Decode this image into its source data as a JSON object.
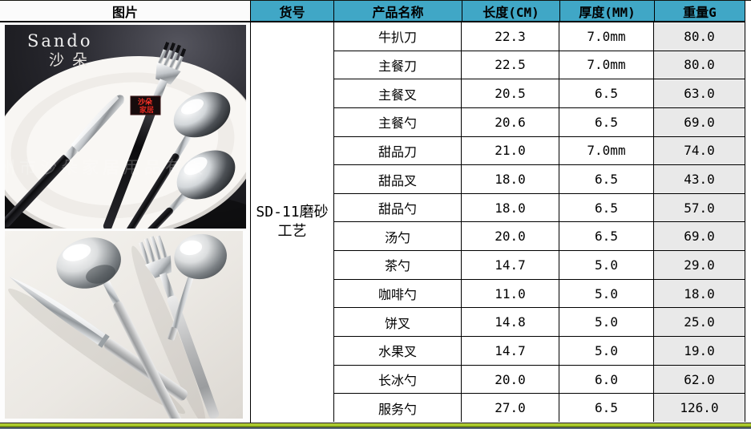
{
  "colors": {
    "header_teal": "#40a7c6",
    "weight_col_bg": "#e9e9e9",
    "bottom_line_green": "#a4c526"
  },
  "left_panel": {
    "header": "图片",
    "photo_dark": {
      "brand_en": "Sando",
      "brand_cn": "沙朵",
      "badge_line1": "沙朵",
      "badge_line2": "家居",
      "watermark": "州市沙朵家居用品有限"
    }
  },
  "table": {
    "headers": [
      "货号",
      "产品名称",
      "长度(CM)",
      "厚度(MM)",
      "重量G"
    ],
    "item_no": "SD-11磨砂工艺",
    "rows": [
      {
        "name": "牛扒刀",
        "length": "22.3",
        "thickness": "7.0mm",
        "weight": "80.0"
      },
      {
        "name": "主餐刀",
        "length": "22.5",
        "thickness": "7.0mm",
        "weight": "80.0"
      },
      {
        "name": "主餐叉",
        "length": "20.5",
        "thickness": "6.5",
        "weight": "63.0"
      },
      {
        "name": "主餐勺",
        "length": "20.6",
        "thickness": "6.5",
        "weight": "69.0"
      },
      {
        "name": "甜品刀",
        "length": "21.0",
        "thickness": "7.0mm",
        "weight": "74.0"
      },
      {
        "name": "甜品叉",
        "length": "18.0",
        "thickness": "6.5",
        "weight": "43.0"
      },
      {
        "name": "甜品勺",
        "length": "18.0",
        "thickness": "6.5",
        "weight": "57.0"
      },
      {
        "name": "汤勺",
        "length": "20.0",
        "thickness": "6.5",
        "weight": "69.0"
      },
      {
        "name": "茶勺",
        "length": "14.7",
        "thickness": "5.0",
        "weight": "29.0"
      },
      {
        "name": "咖啡勺",
        "length": "11.0",
        "thickness": "5.0",
        "weight": "18.0"
      },
      {
        "name": "饼叉",
        "length": "14.8",
        "thickness": "5.0",
        "weight": "25.0"
      },
      {
        "name": "水果叉",
        "length": "14.7",
        "thickness": "5.0",
        "weight": "19.0"
      },
      {
        "name": "长冰勺",
        "length": "20.0",
        "thickness": "6.0",
        "weight": "62.0"
      },
      {
        "name": "服务勺",
        "length": "27.0",
        "thickness": "6.5",
        "weight": "126.0"
      }
    ]
  }
}
